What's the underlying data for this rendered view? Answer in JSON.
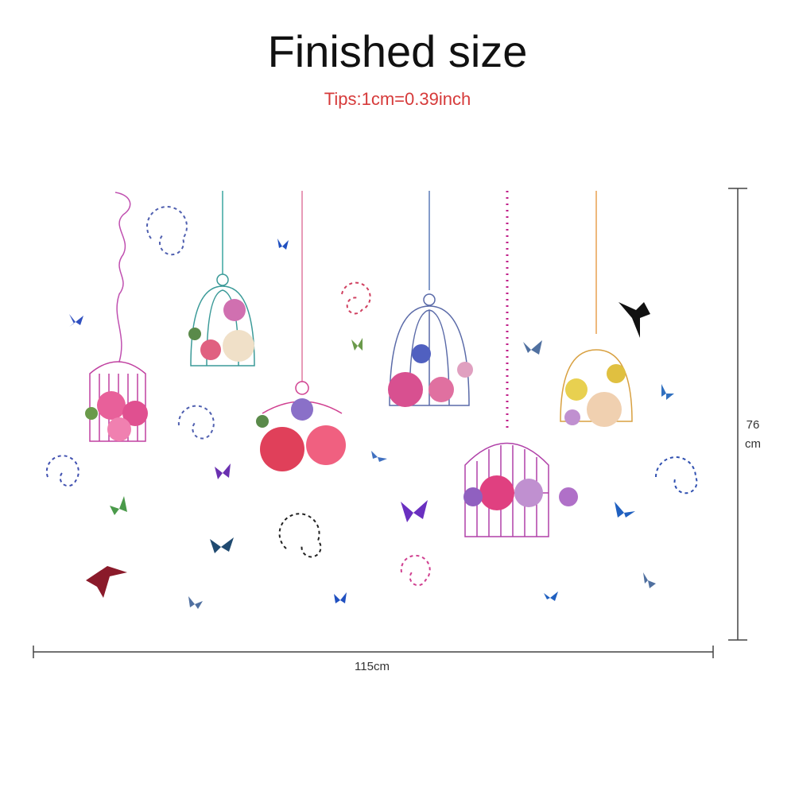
{
  "header": {
    "title": "Finished size",
    "tip": "Tips:1cm=0.39inch"
  },
  "dimensions": {
    "height": {
      "value": "76",
      "unit": "cm"
    },
    "width": "115cm"
  }
}
